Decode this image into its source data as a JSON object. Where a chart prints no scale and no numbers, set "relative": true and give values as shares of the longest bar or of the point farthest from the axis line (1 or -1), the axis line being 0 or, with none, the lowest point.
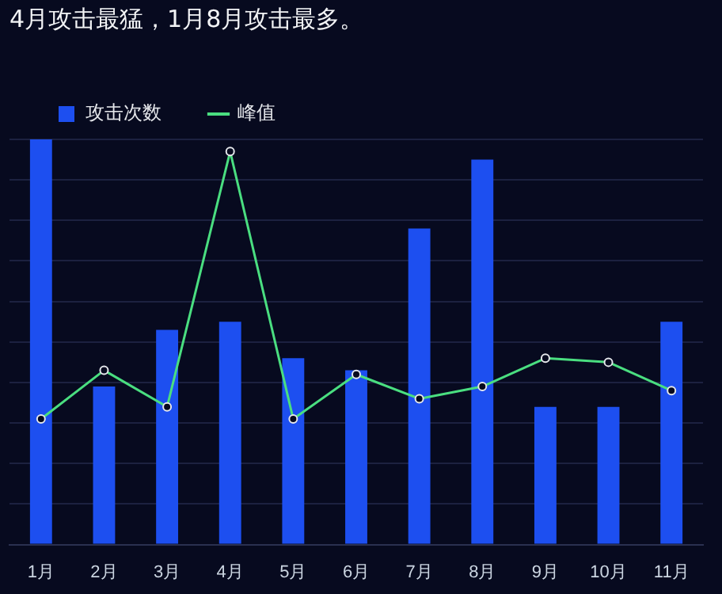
{
  "chart_data": {
    "type": "bar",
    "title": "4月攻击最猛，1月8月攻击最多。",
    "categories": [
      "1月",
      "2月",
      "3月",
      "4月",
      "5月",
      "6月",
      "7月",
      "8月",
      "9月",
      "10月",
      "11月"
    ],
    "series": [
      {
        "name": "攻击次数",
        "color": "#1d4ff0",
        "values": [
          1,
          0.39,
          0.53,
          0.55,
          0.46,
          0.43,
          0.78,
          0.95,
          0.34,
          0.34,
          0.55
        ]
      },
      {
        "name": "峰值",
        "type": "line",
        "color": "#4ade80",
        "values": [
          0.31,
          0.43,
          0.34,
          0.97,
          0.31,
          0.42,
          0.36,
          0.39,
          0.46,
          0.45,
          0.38
        ]
      }
    ],
    "relative": true,
    "grid": "y",
    "legend": "top left",
    "marker": "circle",
    "line_style": "solid"
  }
}
